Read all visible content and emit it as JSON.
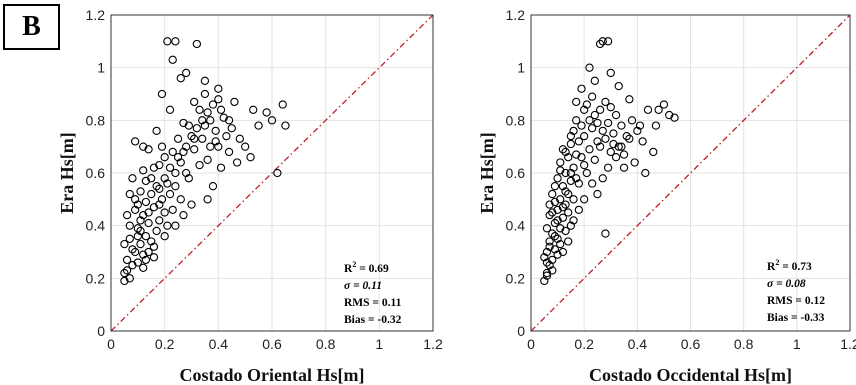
{
  "panel_label": "B",
  "chart_data": [
    {
      "type": "scatter",
      "title": "",
      "xlabel": "Costado Oriental Hs[m]",
      "ylabel": "Era Hs[m]",
      "xlim": [
        0,
        1.2
      ],
      "ylim": [
        0,
        1.2
      ],
      "xticks": [
        "0",
        "0.2",
        "0.4",
        "0.6",
        "0.8",
        "1",
        "1.2"
      ],
      "yticks": [
        "0",
        "0.2",
        "0.4",
        "0.6",
        "0.8",
        "1",
        "1.2"
      ],
      "grid": true,
      "reference_line": "1:1 dash-dot red",
      "marker": "open circle black",
      "stats": {
        "r2_label": "R",
        "r2_sup": "2",
        "r2_value": " = 0.69",
        "sigma": "σ = 0.11",
        "rms": "RMS = 0.11",
        "bias": "Bias = -0.32"
      },
      "points": [
        [
          0.05,
          0.19
        ],
        [
          0.07,
          0.2
        ],
        [
          0.06,
          0.23
        ],
        [
          0.08,
          0.25
        ],
        [
          0.1,
          0.26
        ],
        [
          0.12,
          0.29
        ],
        [
          0.14,
          0.3
        ],
        [
          0.09,
          0.3
        ],
        [
          0.11,
          0.33
        ],
        [
          0.15,
          0.34
        ],
        [
          0.13,
          0.36
        ],
        [
          0.07,
          0.35
        ],
        [
          0.17,
          0.38
        ],
        [
          0.1,
          0.39
        ],
        [
          0.14,
          0.41
        ],
        [
          0.18,
          0.42
        ],
        [
          0.12,
          0.44
        ],
        [
          0.2,
          0.45
        ],
        [
          0.16,
          0.47
        ],
        [
          0.09,
          0.46
        ],
        [
          0.13,
          0.49
        ],
        [
          0.19,
          0.5
        ],
        [
          0.22,
          0.52
        ],
        [
          0.11,
          0.53
        ],
        [
          0.17,
          0.55
        ],
        [
          0.21,
          0.56
        ],
        [
          0.15,
          0.58
        ],
        [
          0.24,
          0.6
        ],
        [
          0.12,
          0.61
        ],
        [
          0.18,
          0.63
        ],
        [
          0.26,
          0.64
        ],
        [
          0.2,
          0.66
        ],
        [
          0.23,
          0.68
        ],
        [
          0.14,
          0.69
        ],
        [
          0.28,
          0.7
        ],
        [
          0.25,
          0.73
        ],
        [
          0.3,
          0.74
        ],
        [
          0.17,
          0.76
        ],
        [
          0.32,
          0.77
        ],
        [
          0.27,
          0.79
        ],
        [
          0.34,
          0.8
        ],
        [
          0.36,
          0.83
        ],
        [
          0.22,
          0.84
        ],
        [
          0.38,
          0.86
        ],
        [
          0.31,
          0.87
        ],
        [
          0.4,
          0.88
        ],
        [
          0.35,
          0.9
        ],
        [
          0.19,
          0.9
        ],
        [
          0.42,
          0.81
        ],
        [
          0.45,
          0.77
        ],
        [
          0.48,
          0.73
        ],
        [
          0.5,
          0.7
        ],
        [
          0.44,
          0.68
        ],
        [
          0.52,
          0.66
        ],
        [
          0.55,
          0.78
        ],
        [
          0.58,
          0.83
        ],
        [
          0.6,
          0.8
        ],
        [
          0.64,
          0.86
        ],
        [
          0.65,
          0.78
        ],
        [
          0.62,
          0.6
        ],
        [
          0.47,
          0.64
        ],
        [
          0.41,
          0.62
        ],
        [
          0.38,
          0.55
        ],
        [
          0.36,
          0.5
        ],
        [
          0.3,
          0.48
        ],
        [
          0.27,
          0.44
        ],
        [
          0.24,
          0.4
        ],
        [
          0.29,
          0.58
        ],
        [
          0.33,
          0.63
        ],
        [
          0.37,
          0.7
        ],
        [
          0.43,
          0.74
        ],
        [
          0.39,
          0.76
        ],
        [
          0.26,
          0.96
        ],
        [
          0.28,
          0.98
        ],
        [
          0.21,
          1.1
        ],
        [
          0.24,
          1.1
        ],
        [
          0.32,
          1.09
        ],
        [
          0.35,
          0.95
        ],
        [
          0.23,
          1.03
        ],
        [
          0.4,
          0.92
        ],
        [
          0.46,
          0.87
        ],
        [
          0.53,
          0.84
        ],
        [
          0.06,
          0.27
        ],
        [
          0.08,
          0.31
        ],
        [
          0.05,
          0.33
        ],
        [
          0.1,
          0.36
        ],
        [
          0.07,
          0.4
        ],
        [
          0.11,
          0.42
        ],
        [
          0.06,
          0.44
        ],
        [
          0.09,
          0.5
        ],
        [
          0.13,
          0.57
        ],
        [
          0.16,
          0.62
        ],
        [
          0.08,
          0.58
        ],
        [
          0.12,
          0.7
        ],
        [
          0.09,
          0.72
        ],
        [
          0.15,
          0.52
        ],
        [
          0.18,
          0.48
        ],
        [
          0.14,
          0.45
        ],
        [
          0.1,
          0.48
        ],
        [
          0.07,
          0.52
        ],
        [
          0.2,
          0.58
        ],
        [
          0.22,
          0.62
        ],
        [
          0.19,
          0.7
        ],
        [
          0.25,
          0.66
        ],
        [
          0.28,
          0.6
        ],
        [
          0.31,
          0.69
        ],
        [
          0.34,
          0.73
        ],
        [
          0.29,
          0.78
        ],
        [
          0.33,
          0.84
        ],
        [
          0.37,
          0.8
        ],
        [
          0.41,
          0.84
        ],
        [
          0.44,
          0.8
        ],
        [
          0.36,
          0.65
        ],
        [
          0.4,
          0.7
        ],
        [
          0.05,
          0.22
        ],
        [
          0.12,
          0.24
        ],
        [
          0.16,
          0.32
        ],
        [
          0.2,
          0.36
        ],
        [
          0.23,
          0.46
        ],
        [
          0.26,
          0.5
        ],
        [
          0.18,
          0.54
        ],
        [
          0.11,
          0.38
        ],
        [
          0.13,
          0.27
        ],
        [
          0.16,
          0.28
        ],
        [
          0.21,
          0.4
        ],
        [
          0.24,
          0.55
        ],
        [
          0.27,
          0.68
        ],
        [
          0.31,
          0.73
        ],
        [
          0.35,
          0.78
        ],
        [
          0.39,
          0.72
        ]
      ]
    },
    {
      "type": "scatter",
      "title": "",
      "xlabel": "Costado Occidental Hs[m]",
      "ylabel": "Era Hs[m]",
      "xlim": [
        0,
        1.2
      ],
      "ylim": [
        0,
        1.2
      ],
      "xticks": [
        "0",
        "0.2",
        "0.4",
        "0.6",
        "0.8",
        "1",
        "1.2"
      ],
      "yticks": [
        "0",
        "0.2",
        "0.4",
        "0.6",
        "0.8",
        "1",
        "1.2"
      ],
      "grid": true,
      "reference_line": "1:1 dash-dot red",
      "marker": "open circle black",
      "stats": {
        "r2_label": "R",
        "r2_sup": "2",
        "r2_value": " = 0.73",
        "sigma": "σ = 0.08",
        "rms": "RMS = 0.12",
        "bias": "Bias = -0.33"
      },
      "points": [
        [
          0.05,
          0.19
        ],
        [
          0.06,
          0.22
        ],
        [
          0.07,
          0.25
        ],
        [
          0.08,
          0.27
        ],
        [
          0.06,
          0.3
        ],
        [
          0.09,
          0.31
        ],
        [
          0.07,
          0.34
        ],
        [
          0.1,
          0.35
        ],
        [
          0.08,
          0.37
        ],
        [
          0.11,
          0.39
        ],
        [
          0.09,
          0.41
        ],
        [
          0.12,
          0.43
        ],
        [
          0.07,
          0.44
        ],
        [
          0.1,
          0.46
        ],
        [
          0.13,
          0.48
        ],
        [
          0.11,
          0.5
        ],
        [
          0.08,
          0.52
        ],
        [
          0.14,
          0.52
        ],
        [
          0.12,
          0.55
        ],
        [
          0.15,
          0.57
        ],
        [
          0.1,
          0.58
        ],
        [
          0.13,
          0.6
        ],
        [
          0.16,
          0.62
        ],
        [
          0.11,
          0.64
        ],
        [
          0.14,
          0.66
        ],
        [
          0.17,
          0.67
        ],
        [
          0.12,
          0.69
        ],
        [
          0.15,
          0.71
        ],
        [
          0.18,
          0.72
        ],
        [
          0.2,
          0.74
        ],
        [
          0.16,
          0.76
        ],
        [
          0.19,
          0.78
        ],
        [
          0.22,
          0.8
        ],
        [
          0.24,
          0.82
        ],
        [
          0.26,
          0.84
        ],
        [
          0.21,
          0.86
        ],
        [
          0.28,
          0.87
        ],
        [
          0.23,
          0.89
        ],
        [
          0.3,
          0.85
        ],
        [
          0.32,
          0.82
        ],
        [
          0.29,
          0.79
        ],
        [
          0.27,
          0.76
        ],
        [
          0.25,
          0.72
        ],
        [
          0.31,
          0.75
        ],
        [
          0.34,
          0.78
        ],
        [
          0.36,
          0.74
        ],
        [
          0.33,
          0.7
        ],
        [
          0.3,
          0.68
        ],
        [
          0.38,
          0.8
        ],
        [
          0.4,
          0.76
        ],
        [
          0.42,
          0.72
        ],
        [
          0.44,
          0.84
        ],
        [
          0.47,
          0.78
        ],
        [
          0.5,
          0.86
        ],
        [
          0.52,
          0.82
        ],
        [
          0.54,
          0.81
        ],
        [
          0.48,
          0.84
        ],
        [
          0.46,
          0.68
        ],
        [
          0.43,
          0.6
        ],
        [
          0.39,
          0.64
        ],
        [
          0.35,
          0.62
        ],
        [
          0.37,
          0.88
        ],
        [
          0.33,
          0.93
        ],
        [
          0.3,
          0.98
        ],
        [
          0.27,
          1.1
        ],
        [
          0.29,
          1.1
        ],
        [
          0.26,
          1.09
        ],
        [
          0.22,
          1.0
        ],
        [
          0.24,
          0.95
        ],
        [
          0.19,
          0.92
        ],
        [
          0.17,
          0.87
        ],
        [
          0.06,
          0.26
        ],
        [
          0.05,
          0.28
        ],
        [
          0.07,
          0.32
        ],
        [
          0.09,
          0.36
        ],
        [
          0.06,
          0.39
        ],
        [
          0.1,
          0.42
        ],
        [
          0.08,
          0.45
        ],
        [
          0.12,
          0.47
        ],
        [
          0.09,
          0.49
        ],
        [
          0.14,
          0.45
        ],
        [
          0.16,
          0.5
        ],
        [
          0.13,
          0.53
        ],
        [
          0.18,
          0.56
        ],
        [
          0.15,
          0.6
        ],
        [
          0.2,
          0.63
        ],
        [
          0.17,
          0.58
        ],
        [
          0.19,
          0.66
        ],
        [
          0.22,
          0.69
        ],
        [
          0.21,
          0.6
        ],
        [
          0.24,
          0.65
        ],
        [
          0.26,
          0.7
        ],
        [
          0.28,
          0.73
        ],
        [
          0.23,
          0.56
        ],
        [
          0.25,
          0.52
        ],
        [
          0.27,
          0.58
        ],
        [
          0.29,
          0.62
        ],
        [
          0.32,
          0.66
        ],
        [
          0.34,
          0.7
        ],
        [
          0.28,
          0.37
        ],
        [
          0.06,
          0.21
        ],
        [
          0.08,
          0.23
        ],
        [
          0.1,
          0.29
        ],
        [
          0.11,
          0.33
        ],
        [
          0.13,
          0.38
        ],
        [
          0.15,
          0.4
        ],
        [
          0.12,
          0.3
        ],
        [
          0.14,
          0.34
        ],
        [
          0.16,
          0.42
        ],
        [
          0.18,
          0.46
        ],
        [
          0.2,
          0.5
        ],
        [
          0.07,
          0.48
        ],
        [
          0.09,
          0.55
        ],
        [
          0.11,
          0.61
        ],
        [
          0.13,
          0.68
        ],
        [
          0.15,
          0.74
        ],
        [
          0.17,
          0.8
        ],
        [
          0.2,
          0.84
        ],
        [
          0.23,
          0.77
        ],
        [
          0.25,
          0.79
        ],
        [
          0.31,
          0.71
        ],
        [
          0.35,
          0.67
        ],
        [
          0.37,
          0.73
        ],
        [
          0.41,
          0.78
        ]
      ]
    }
  ]
}
